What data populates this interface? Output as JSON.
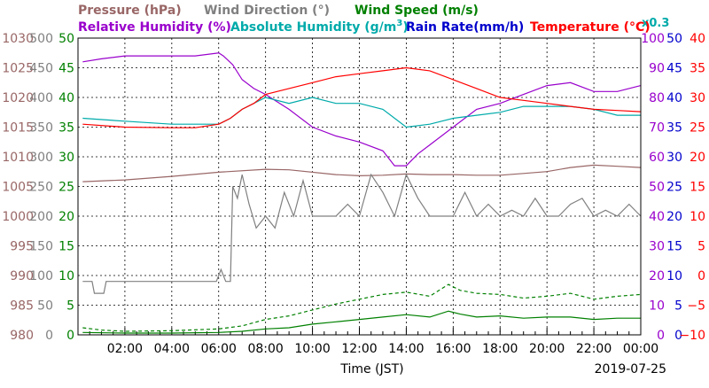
{
  "chart_data": {
    "type": "line",
    "date": "2019-07-25",
    "xlabel": "Time (JST)",
    "x_ticks": [
      "02:00",
      "04:00",
      "06:00",
      "08:00",
      "10:00",
      "12:00",
      "14:00",
      "16:00",
      "18:00",
      "20:00",
      "22:00",
      "00:00"
    ],
    "grid": true,
    "legend": [
      {
        "key": "pressure",
        "label": "Pressure (hPa)",
        "color": "#996666"
      },
      {
        "key": "wind_dir",
        "label": "Wind Direction (°)",
        "color": "#808080"
      },
      {
        "key": "wind_speed",
        "label": "Wind Speed (m/s)",
        "color": "#008000"
      },
      {
        "key": "rh",
        "label": "Relative Humidity (%)",
        "color": "#9900cc"
      },
      {
        "key": "ah",
        "label": "Absolute Humidity (g/m",
        "sup": "3",
        "tail": ")",
        "color": "#00aaaa",
        "note": "x0.3"
      },
      {
        "key": "rain",
        "label": "Rain Rate(mm/h)",
        "color": "#0000cc"
      },
      {
        "key": "temp",
        "label": "Temperature (°C)",
        "color": "#ff0000"
      }
    ],
    "axes": {
      "pressure": {
        "ticks": [
          "1030",
          "1025",
          "1020",
          "1015",
          "1010",
          "1005",
          "1000",
          "995",
          "990",
          "985",
          "980"
        ],
        "ylim": [
          980,
          1030
        ],
        "color": "#996666"
      },
      "wind_dir": {
        "ticks": [
          "500",
          "450",
          "400",
          "350",
          "300",
          "250",
          "200",
          "150",
          "100",
          "50",
          "0"
        ],
        "ylim": [
          0,
          500
        ],
        "color": "#808080"
      },
      "wind_speed": {
        "ticks": [
          "50",
          "45",
          "40",
          "35",
          "30",
          "25",
          "20",
          "15",
          "10",
          "5",
          "0"
        ],
        "ylim": [
          0,
          50
        ],
        "color": "#008000"
      },
      "rh": {
        "ticks": [
          "100",
          "90",
          "80",
          "70",
          "60",
          "50",
          "40",
          "30",
          "20",
          "10",
          "0"
        ],
        "ylim": [
          0,
          100
        ],
        "color": "#9900cc"
      },
      "rain": {
        "ticks": [
          "50",
          "45",
          "40",
          "35",
          "30",
          "25",
          "20",
          "15",
          "10",
          "5",
          "0"
        ],
        "ylim": [
          0,
          50
        ],
        "color": "#0000cc"
      },
      "temp": {
        "ticks": [
          "40",
          "35",
          "30",
          "25",
          "20",
          "15",
          "10",
          "5",
          "0",
          "−5",
          "−10"
        ],
        "ylim": [
          -10,
          40
        ],
        "color": "#ff0000"
      }
    },
    "series": [
      {
        "key": "pressure",
        "axis": "pressure",
        "color": "#996666",
        "x": [
          0.2,
          2,
          4,
          6,
          8,
          9,
          11,
          12,
          13,
          14,
          15,
          16,
          17,
          18,
          19,
          20,
          21,
          22,
          23,
          24
        ],
        "y": [
          1005.8,
          1006.1,
          1006.7,
          1007.4,
          1007.9,
          1007.8,
          1007.0,
          1006.8,
          1006.9,
          1007.1,
          1007.0,
          1007.0,
          1006.9,
          1006.9,
          1007.2,
          1007.5,
          1008.2,
          1008.6,
          1008.4,
          1008.2
        ]
      },
      {
        "key": "wind_dir",
        "axis": "wind_dir",
        "color": "#808080",
        "x": [
          0.2,
          0.6,
          0.7,
          1.1,
          1.2,
          2,
          4,
          5.9,
          6.1,
          6.3,
          6.5,
          6.6,
          6.8,
          7,
          7.3,
          7.6,
          8,
          8.4,
          8.8,
          9.2,
          9.6,
          10,
          10.5,
          11,
          11.5,
          12,
          12.5,
          13,
          13.5,
          14,
          14.5,
          15,
          15.5,
          16,
          16.5,
          17,
          17.5,
          18,
          18.5,
          19,
          19.5,
          20,
          20.5,
          21,
          21.5,
          22,
          22.5,
          23,
          23.5,
          24
        ],
        "y": [
          90,
          90,
          70,
          70,
          90,
          90,
          90,
          90,
          110,
          90,
          90,
          250,
          230,
          270,
          220,
          180,
          200,
          180,
          240,
          200,
          260,
          200,
          200,
          200,
          220,
          200,
          270,
          240,
          200,
          270,
          230,
          200,
          200,
          200,
          240,
          200,
          220,
          200,
          210,
          200,
          230,
          200,
          200,
          220,
          230,
          200,
          210,
          200,
          220,
          200
        ]
      },
      {
        "key": "wind_speed",
        "axis": "wind_speed",
        "color": "#008000",
        "dash": "none",
        "x": [
          0.2,
          2,
          4,
          6,
          7,
          8,
          9,
          10,
          11,
          12,
          13,
          14,
          15,
          15.8,
          16.3,
          17,
          18,
          19,
          20,
          21,
          22,
          23,
          24
        ],
        "y": [
          0.4,
          0.3,
          0.3,
          0.4,
          0.6,
          1.0,
          1.2,
          1.8,
          2.2,
          2.6,
          3.0,
          3.4,
          3.0,
          4.0,
          3.5,
          3.0,
          3.2,
          2.8,
          3.0,
          3.0,
          2.6,
          2.8,
          2.8
        ]
      },
      {
        "key": "wind_gust",
        "axis": "wind_speed",
        "color": "#008000",
        "dash": "4,3",
        "x": [
          0.2,
          1,
          2,
          4,
          6,
          7,
          8,
          9,
          10,
          11,
          12,
          13,
          14,
          15,
          15.8,
          16.3,
          17,
          18,
          19,
          20,
          21,
          22,
          23,
          24
        ],
        "y": [
          1.2,
          0.8,
          0.6,
          0.7,
          1.0,
          1.5,
          2.6,
          3.2,
          4.2,
          5.2,
          6.0,
          6.8,
          7.2,
          6.5,
          8.5,
          7.5,
          7.0,
          6.8,
          6.2,
          6.5,
          7.0,
          6.0,
          6.5,
          6.8
        ]
      },
      {
        "key": "rh",
        "axis": "rh",
        "color": "#9900cc",
        "x": [
          0.2,
          1,
          2,
          4,
          5,
          6,
          6.2,
          6.6,
          7,
          7.5,
          8,
          9,
          10,
          11,
          12,
          13,
          13.5,
          14,
          14.5,
          15,
          16,
          17,
          18,
          19,
          20,
          21,
          22,
          23,
          24
        ],
        "y": [
          92,
          93,
          94,
          94,
          94,
          95,
          94,
          91,
          86,
          83,
          81,
          76,
          70,
          67,
          65,
          62,
          57,
          57,
          61,
          64,
          70,
          76,
          78,
          81,
          84,
          85,
          82,
          82,
          84
        ]
      },
      {
        "key": "ah",
        "axis": "rh",
        "color": "#00aaaa",
        "x": [
          0.2,
          2,
          4,
          6,
          6.5,
          7,
          8,
          9,
          10,
          11,
          12,
          13,
          14,
          15,
          16,
          17,
          18,
          19,
          20,
          21,
          22,
          23,
          24
        ],
        "y": [
          73,
          72,
          71,
          71,
          73,
          76,
          80,
          78,
          80,
          78,
          78,
          76,
          70,
          71,
          73,
          74,
          75,
          77,
          77,
          77,
          76,
          74,
          74
        ]
      },
      {
        "key": "temp",
        "axis": "temp",
        "color": "#ff0000",
        "x": [
          0.2,
          2,
          4,
          5,
          6,
          6.5,
          7,
          7.5,
          8,
          9,
          10,
          11,
          12,
          13,
          14,
          15,
          16,
          17,
          18,
          19,
          20,
          21,
          22,
          23,
          24
        ],
        "y": [
          25.5,
          25,
          24.9,
          24.9,
          25.5,
          26.5,
          28,
          29,
          30.5,
          31.5,
          32.5,
          33.5,
          34,
          34.5,
          35,
          34.5,
          33,
          31.5,
          30,
          29.5,
          29,
          28.5,
          28,
          27.8,
          27.6
        ]
      }
    ]
  }
}
